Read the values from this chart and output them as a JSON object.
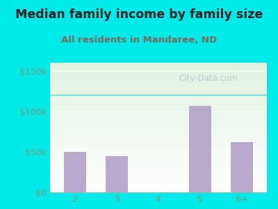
{
  "title": "Median family income by family size",
  "subtitle": "All residents in Mandaree, ND",
  "categories": [
    "2",
    "3",
    "4",
    "5",
    "6+"
  ],
  "values": [
    50000,
    45000,
    0,
    107000,
    62000
  ],
  "bar_color": "#b8a8cc",
  "outer_bg": "#00eaea",
  "title_color": "#222222",
  "subtitle_color": "#7a6a5a",
  "tick_color": "#7a9a7a",
  "yticks": [
    0,
    50000,
    100000,
    150000
  ],
  "ytick_labels": [
    "$0",
    "$50k",
    "$100k",
    "$150k"
  ],
  "ylim": [
    0,
    160000
  ],
  "watermark": "City-Data.com",
  "title_fontsize": 12.5,
  "subtitle_fontsize": 9.5
}
